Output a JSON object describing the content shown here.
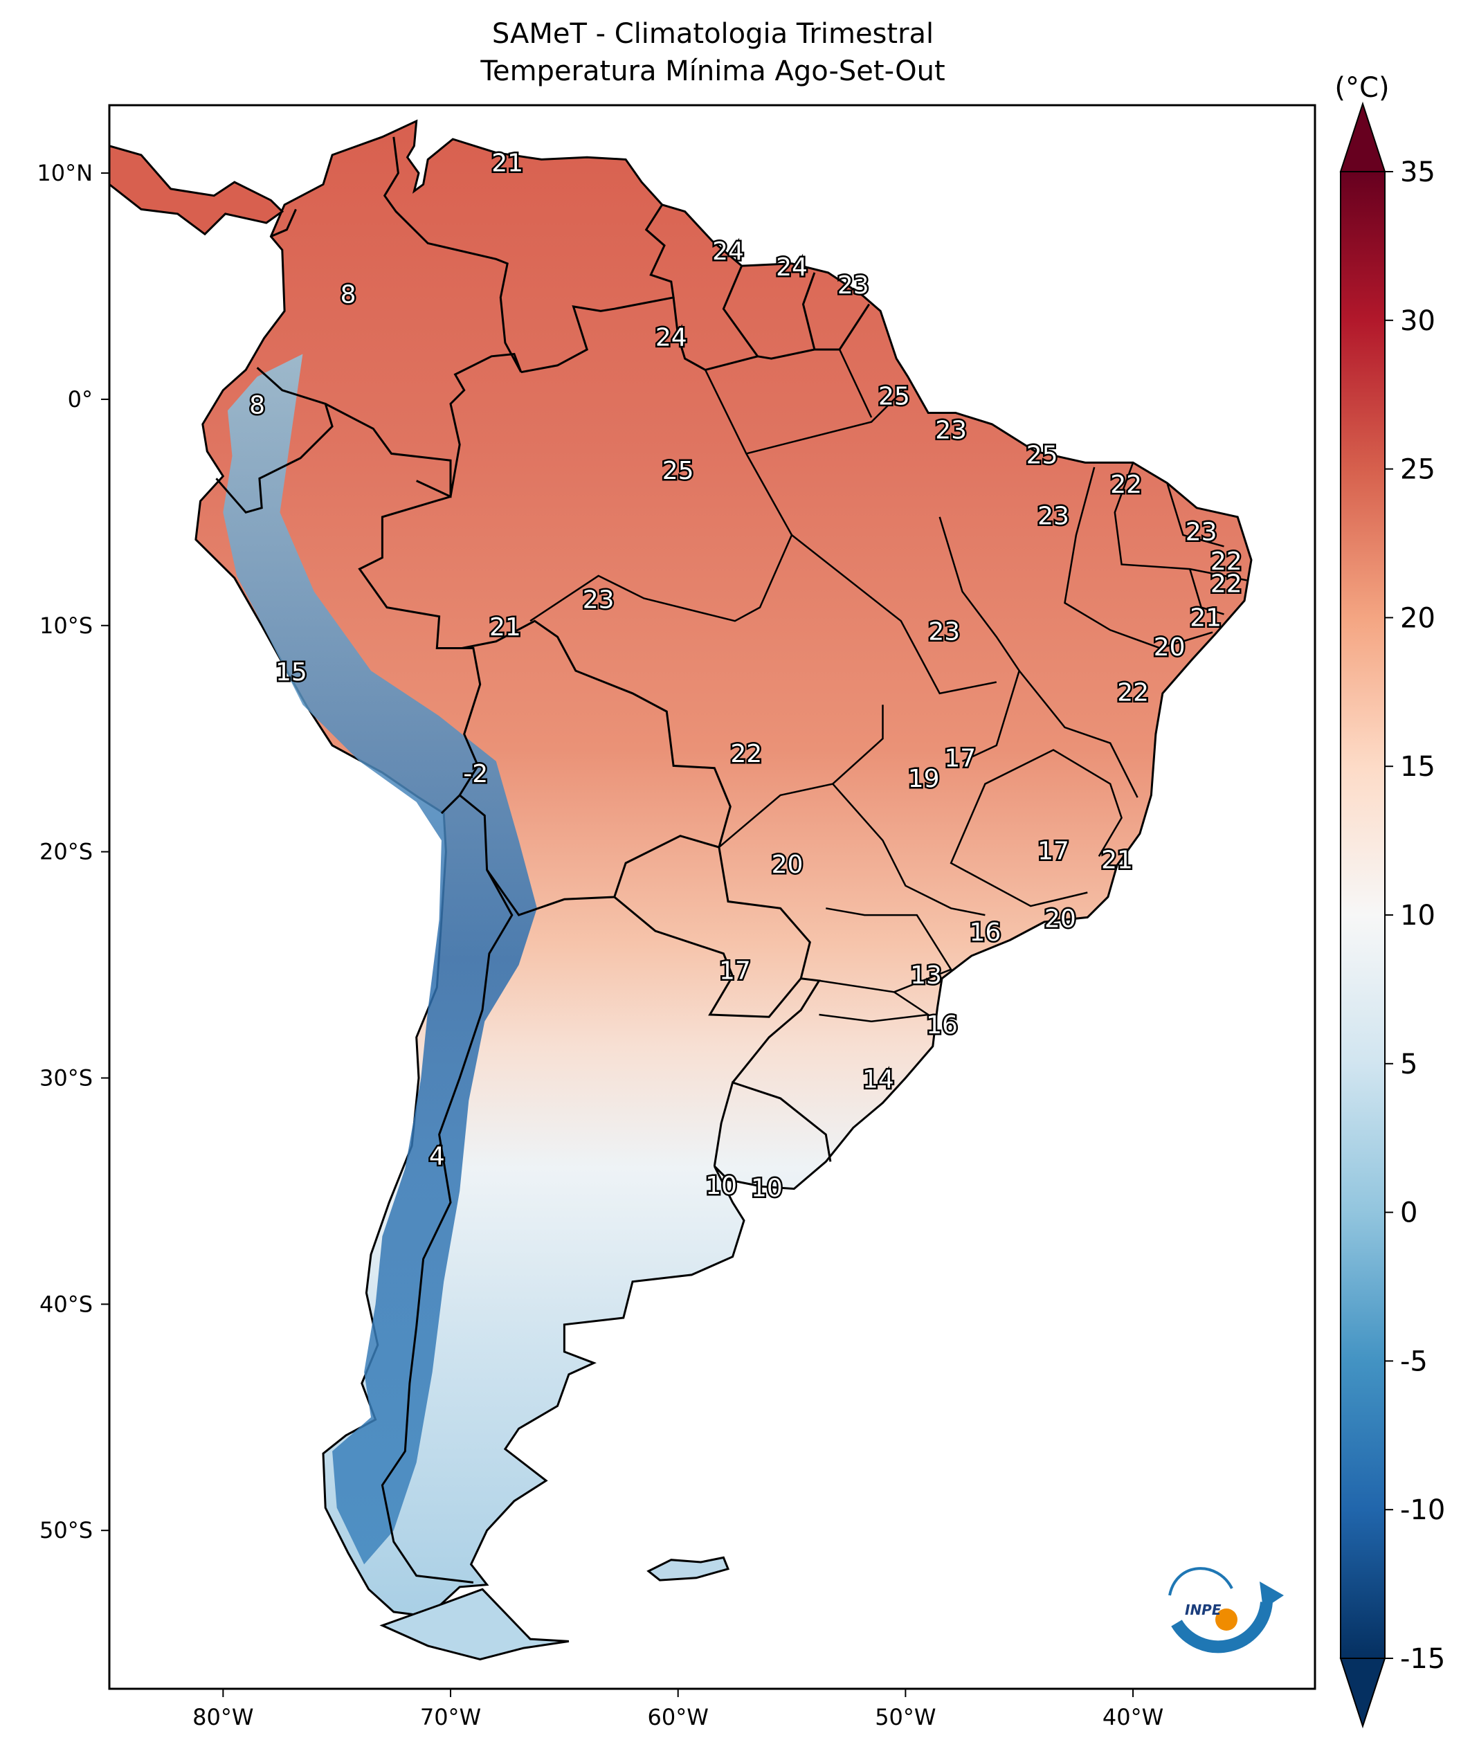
{
  "title": {
    "line1": "SAMeT - Climatologia Trimestral",
    "line2": "Temperatura Mínima   Ago-Set-Out"
  },
  "map": {
    "lon_range": [
      -85,
      -32
    ],
    "lat_range": [
      -57,
      13
    ],
    "x_ticks": [
      {
        "value": -80,
        "label": "80°W"
      },
      {
        "value": -70,
        "label": "70°W"
      },
      {
        "value": -60,
        "label": "60°W"
      },
      {
        "value": -50,
        "label": "50°W"
      },
      {
        "value": -40,
        "label": "40°W"
      }
    ],
    "y_ticks": [
      {
        "value": 10,
        "label": "10°N"
      },
      {
        "value": 0,
        "label": "0°"
      },
      {
        "value": -10,
        "label": "10°S"
      },
      {
        "value": -20,
        "label": "20°S"
      },
      {
        "value": -30,
        "label": "30°S"
      },
      {
        "value": -40,
        "label": "40°S"
      },
      {
        "value": -50,
        "label": "50°S"
      }
    ],
    "annotations": [
      {
        "lon": -67.5,
        "lat": 10.5,
        "text": "21"
      },
      {
        "lon": -74.5,
        "lat": 4.7,
        "text": "8"
      },
      {
        "lon": -78.5,
        "lat": -0.2,
        "text": "8"
      },
      {
        "lon": -57.8,
        "lat": 6.6,
        "text": "24"
      },
      {
        "lon": -55.0,
        "lat": 5.9,
        "text": "24"
      },
      {
        "lon": -52.3,
        "lat": 5.1,
        "text": "23"
      },
      {
        "lon": -60.3,
        "lat": 2.8,
        "text": "24"
      },
      {
        "lon": -50.5,
        "lat": 0.2,
        "text": "25"
      },
      {
        "lon": -48.0,
        "lat": -1.3,
        "text": "23"
      },
      {
        "lon": -44.0,
        "lat": -2.4,
        "text": "25"
      },
      {
        "lon": -40.3,
        "lat": -3.7,
        "text": "22"
      },
      {
        "lon": -60.0,
        "lat": -3.1,
        "text": "25"
      },
      {
        "lon": -43.5,
        "lat": -5.1,
        "text": "23"
      },
      {
        "lon": -37.0,
        "lat": -5.8,
        "text": "23"
      },
      {
        "lon": -35.9,
        "lat": -7.1,
        "text": "22"
      },
      {
        "lon": -35.9,
        "lat": -8.1,
        "text": "22"
      },
      {
        "lon": -36.8,
        "lat": -9.6,
        "text": "21"
      },
      {
        "lon": -38.4,
        "lat": -10.9,
        "text": "20"
      },
      {
        "lon": -63.5,
        "lat": -8.8,
        "text": "23"
      },
      {
        "lon": -67.6,
        "lat": -10.0,
        "text": "21"
      },
      {
        "lon": -48.3,
        "lat": -10.2,
        "text": "23"
      },
      {
        "lon": -40.0,
        "lat": -12.9,
        "text": "22"
      },
      {
        "lon": -77.0,
        "lat": -12.0,
        "text": "15"
      },
      {
        "lon": -47.6,
        "lat": -15.8,
        "text": "17"
      },
      {
        "lon": -49.2,
        "lat": -16.7,
        "text": "19"
      },
      {
        "lon": -57.0,
        "lat": -15.6,
        "text": "22"
      },
      {
        "lon": -68.9,
        "lat": -16.5,
        "text": "-2"
      },
      {
        "lon": -43.5,
        "lat": -19.9,
        "text": "17"
      },
      {
        "lon": -40.7,
        "lat": -20.3,
        "text": "21"
      },
      {
        "lon": -55.2,
        "lat": -20.5,
        "text": "20"
      },
      {
        "lon": -43.2,
        "lat": -22.9,
        "text": "20"
      },
      {
        "lon": -46.5,
        "lat": -23.5,
        "text": "16"
      },
      {
        "lon": -49.1,
        "lat": -25.4,
        "text": "13"
      },
      {
        "lon": -57.5,
        "lat": -25.2,
        "text": "17"
      },
      {
        "lon": -48.4,
        "lat": -27.6,
        "text": "16"
      },
      {
        "lon": -51.2,
        "lat": -30.0,
        "text": "14"
      },
      {
        "lon": -70.6,
        "lat": -33.4,
        "text": "4"
      },
      {
        "lon": -58.1,
        "lat": -34.7,
        "text": "10"
      },
      {
        "lon": -56.1,
        "lat": -34.8,
        "text": "10"
      }
    ]
  },
  "colorbar": {
    "unit": "(°C)",
    "min": -15,
    "max": 35,
    "ticks": [
      {
        "value": 35,
        "label": "35"
      },
      {
        "value": 30,
        "label": "30"
      },
      {
        "value": 25,
        "label": "25"
      },
      {
        "value": 20,
        "label": "20"
      },
      {
        "value": 15,
        "label": "15"
      },
      {
        "value": 10,
        "label": "10"
      },
      {
        "value": 5,
        "label": "5"
      },
      {
        "value": 0,
        "label": "0"
      },
      {
        "value": -5,
        "label": "-5"
      },
      {
        "value": -10,
        "label": "-10"
      },
      {
        "value": -15,
        "label": "-15"
      }
    ],
    "colors": [
      "#053061",
      "#2166ac",
      "#4393c3",
      "#92c5de",
      "#d1e5f0",
      "#f7f7f7",
      "#fddbc7",
      "#f4a582",
      "#d6604d",
      "#b2182b",
      "#67001f"
    ]
  },
  "logo": {
    "text": "INPE",
    "primary_color": "#1f77b4",
    "accent_color": "#f08c00"
  }
}
